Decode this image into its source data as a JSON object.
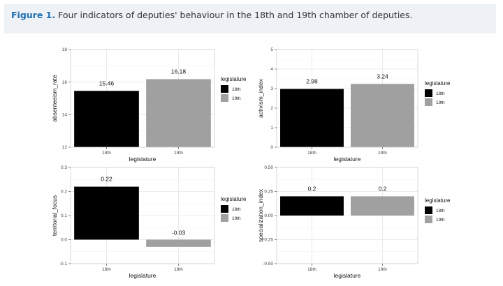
{
  "caption": {
    "figure_label": "Figure 1.",
    "text": "Four indicators of deputies' behaviour in the 18th and 19th chamber of deputies."
  },
  "colors": {
    "series_18th": "#000000",
    "series_19th": "#a0a0a0",
    "grid": "#e6e6e6",
    "panel_border": "#cfcfcf"
  },
  "chart_data": [
    {
      "type": "bar",
      "categories": [
        "18th",
        "19th"
      ],
      "values": [
        15.46,
        16.18
      ],
      "labels": [
        "15.46",
        "16.18"
      ],
      "xlabel": "legislature",
      "ylabel": "absenteeism_rate",
      "ylim": [
        12,
        18
      ],
      "yticks": [
        12,
        14,
        16,
        18
      ],
      "grid": true,
      "legend": {
        "title": "legislature",
        "entries": [
          "18th",
          "19th"
        ],
        "placement": "right"
      }
    },
    {
      "type": "bar",
      "categories": [
        "18th",
        "19th"
      ],
      "values": [
        2.98,
        3.24
      ],
      "labels": [
        "2.98",
        "3.24"
      ],
      "xlabel": "legislature",
      "ylabel": "activism_index",
      "ylim": [
        0,
        5
      ],
      "yticks": [
        0,
        1,
        2,
        3,
        4,
        5
      ],
      "grid": true,
      "legend": {
        "title": "legislature",
        "entries": [
          "18th",
          "19th"
        ],
        "placement": "right"
      }
    },
    {
      "type": "bar",
      "categories": [
        "18th",
        "19th"
      ],
      "values": [
        0.22,
        -0.03
      ],
      "labels": [
        "0.22",
        "-0.03"
      ],
      "xlabel": "legislature",
      "ylabel": "territorial_focus",
      "ylim": [
        -0.1,
        0.3
      ],
      "yticks": [
        -0.1,
        0.0,
        0.1,
        0.2,
        0.3
      ],
      "grid": true,
      "legend": {
        "title": "legislature",
        "entries": [
          "18th",
          "19th"
        ],
        "placement": "right"
      }
    },
    {
      "type": "bar",
      "categories": [
        "18th",
        "19th"
      ],
      "values": [
        0.2,
        0.2
      ],
      "labels": [
        "0.2",
        "0.2"
      ],
      "xlabel": "legislature",
      "ylabel": "specialization_index",
      "ylim": [
        -0.5,
        0.5
      ],
      "yticks": [
        -0.5,
        -0.25,
        0.0,
        0.25,
        0.5
      ],
      "grid": true,
      "legend": {
        "title": "legislature",
        "entries": [
          "18th",
          "19th"
        ],
        "placement": "right"
      }
    }
  ]
}
